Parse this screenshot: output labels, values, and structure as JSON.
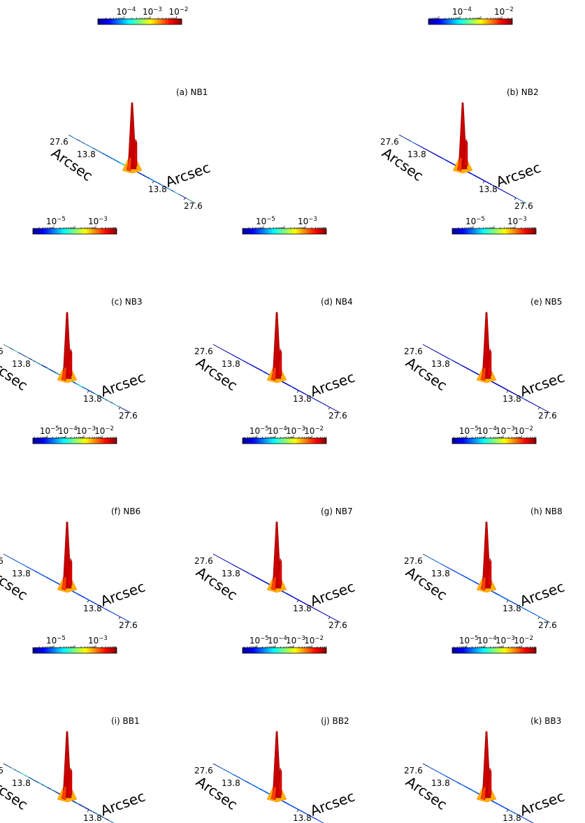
{
  "figure": {
    "common": {
      "x_ticks": [
        "13.8",
        "27.6"
      ],
      "y_ticks": [
        "27.6",
        "13.8"
      ],
      "xlabel": "Arcsec",
      "ylabel": "Arcsec",
      "colormap": "jet",
      "zscale": "log"
    }
  },
  "chart_data": [
    {
      "type": "surface",
      "label": "(a) NB1",
      "cbar_ticks": [
        "-4",
        "-3",
        "-2"
      ],
      "cbar_range_log10": [
        -5,
        -1.8
      ],
      "background": "noisy",
      "peak_height": 1.0
    },
    {
      "type": "surface",
      "label": "(b) NB2",
      "cbar_ticks": [
        "-4",
        "-2"
      ],
      "cbar_range_log10": [
        -5.5,
        -1.5
      ],
      "background": "flat",
      "peak_height": 1.0
    },
    {
      "type": "surface",
      "label": "(c) NB3",
      "cbar_ticks": [
        "-5",
        "-3"
      ],
      "cbar_range_log10": [
        -6,
        -2
      ],
      "background": "patchy",
      "peak_height": 1.0
    },
    {
      "type": "surface",
      "label": "(d) NB4",
      "cbar_ticks": [
        "-5",
        "-3"
      ],
      "cbar_range_log10": [
        -6,
        -2
      ],
      "background": "flat",
      "peak_height": 1.0
    },
    {
      "type": "surface",
      "label": "(e) NB5",
      "cbar_ticks": [
        "-5",
        "-3"
      ],
      "cbar_range_log10": [
        -6,
        -2
      ],
      "background": "flat",
      "peak_height": 1.0
    },
    {
      "type": "surface",
      "label": "(f) NB6",
      "cbar_ticks": [
        "-5",
        "-4",
        "-3",
        "-2"
      ],
      "cbar_range_log10": [
        -5.8,
        -1.2
      ],
      "background": "mottled",
      "peak_height": 1.0
    },
    {
      "type": "surface",
      "label": "(g) NB7",
      "cbar_ticks": [
        "-5",
        "-4",
        "-3",
        "-2"
      ],
      "cbar_range_log10": [
        -5.8,
        -1.2
      ],
      "background": "flat",
      "peak_height": 1.0
    },
    {
      "type": "surface",
      "label": "(h) NB8",
      "cbar_ticks": [
        "-5",
        "-4",
        "-3",
        "-2"
      ],
      "cbar_range_log10": [
        -5.8,
        -1.2
      ],
      "background": "mottled",
      "peak_height": 1.0
    },
    {
      "type": "surface",
      "label": "(i) BB1",
      "cbar_ticks": [
        "-5",
        "-3"
      ],
      "cbar_range_log10": [
        -6,
        -2
      ],
      "background": "patchy",
      "peak_height": 1.0
    },
    {
      "type": "surface",
      "label": "(j) BB2",
      "cbar_ticks": [
        "-5",
        "-4",
        "-3",
        "-2"
      ],
      "cbar_range_log10": [
        -5.8,
        -1.2
      ],
      "background": "mottled",
      "peak_height": 1.0
    },
    {
      "type": "surface",
      "label": "(k) BB3",
      "cbar_ticks": [
        "-5",
        "-4",
        "-3",
        "-2"
      ],
      "cbar_range_log10": [
        -5.8,
        -1.2
      ],
      "background": "mottled",
      "peak_height": 1.0
    }
  ]
}
